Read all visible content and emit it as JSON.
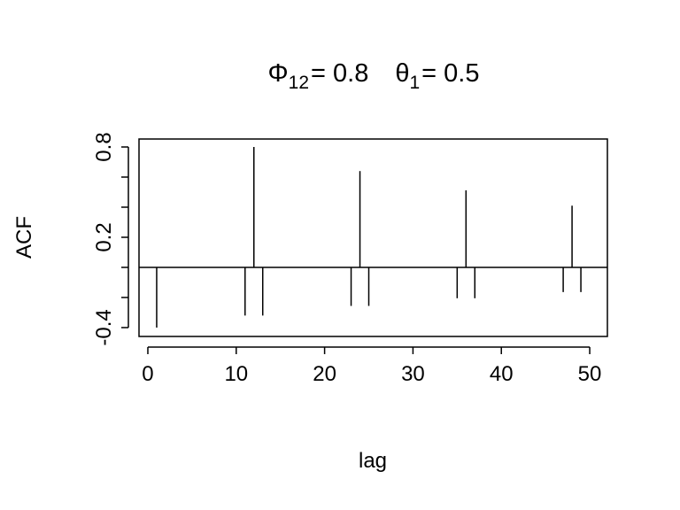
{
  "chart_data": {
    "type": "bar",
    "title": {
      "phi_symbol": "Φ",
      "phi_sub": "12",
      "phi_value": "= 0.8",
      "theta_symbol": "θ",
      "theta_sub": "1",
      "theta_value": "= 0.5"
    },
    "xlabel": "lag",
    "ylabel": "ACF",
    "xlim": [
      -1,
      52
    ],
    "ylim": [
      -0.459,
      0.853
    ],
    "xticks": [
      0,
      10,
      20,
      30,
      40,
      50
    ],
    "yticks": [
      -0.4,
      -0.2,
      0.0,
      0.2,
      0.4,
      0.6,
      0.8
    ],
    "ytick_labels": [
      {
        "value": -0.4,
        "label": "-0.4"
      },
      {
        "value": 0.2,
        "label": "0.2"
      },
      {
        "value": 0.8,
        "label": "0.8"
      }
    ],
    "zero_line": true,
    "grid": false,
    "x": [
      1,
      2,
      3,
      4,
      5,
      6,
      7,
      8,
      9,
      10,
      11,
      12,
      13,
      14,
      15,
      16,
      17,
      18,
      19,
      20,
      21,
      22,
      23,
      24,
      25,
      26,
      27,
      28,
      29,
      30,
      31,
      32,
      33,
      34,
      35,
      36,
      37,
      38,
      39,
      40,
      41,
      42,
      43,
      44,
      45,
      46,
      47,
      48,
      49,
      50
    ],
    "values": [
      -0.4,
      0,
      0,
      0,
      0,
      0,
      0,
      0,
      0,
      0,
      -0.32,
      0.8,
      -0.32,
      0,
      0,
      0,
      0,
      0,
      0,
      0,
      0,
      0,
      -0.256,
      0.64,
      -0.256,
      0,
      0,
      0,
      0,
      0,
      0,
      0,
      0,
      0,
      -0.205,
      0.512,
      -0.205,
      0,
      0,
      0,
      0,
      0,
      0,
      0,
      0,
      0,
      -0.164,
      0.41,
      -0.164,
      0
    ]
  }
}
